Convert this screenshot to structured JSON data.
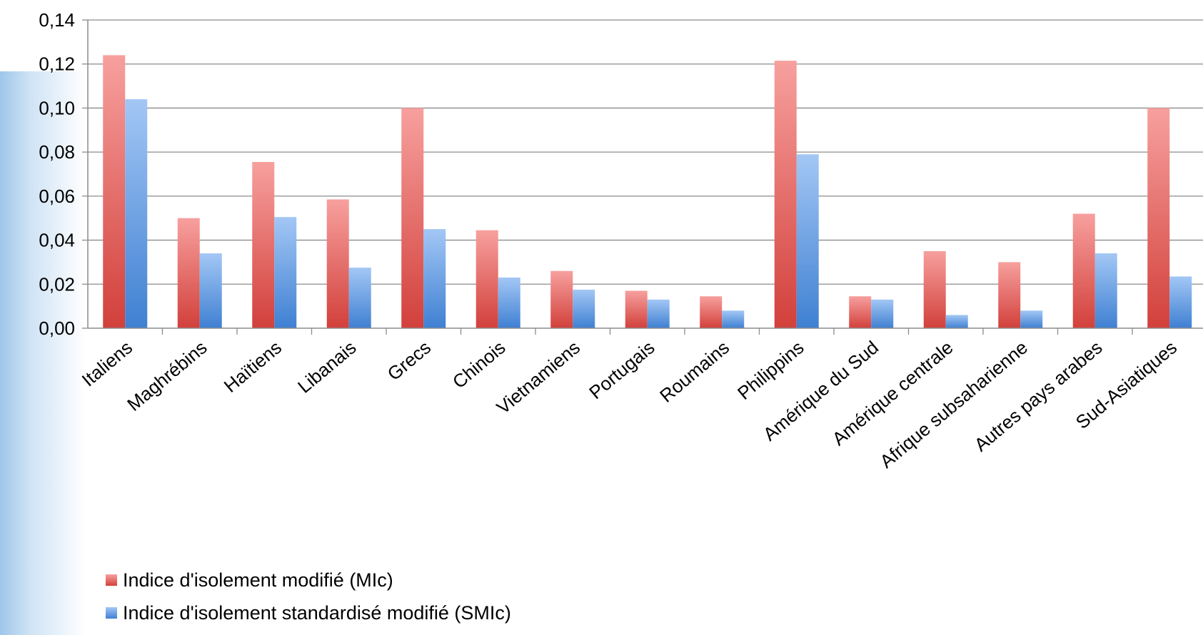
{
  "chart_data": {
    "type": "bar",
    "categories": [
      "Italiens",
      "Maghrébins",
      "Haïtiens",
      "Libanais",
      "Grecs",
      "Chinois",
      "Vietnamiens",
      "Portugais",
      "Roumains",
      "Philippins",
      "Amérique du Sud",
      "Amérique centrale",
      "Afrique subsaharienne",
      "Autres pays arabes",
      "Sud-Asiatiques"
    ],
    "series": [
      {
        "name": "Indice d'isolement modifié (MIc)",
        "color_top": "#f7a09e",
        "color_bottom": "#d2403b",
        "values": [
          0.124,
          0.05,
          0.0755,
          0.0585,
          0.1,
          0.0445,
          0.026,
          0.017,
          0.0145,
          0.1215,
          0.0145,
          0.035,
          0.03,
          0.052,
          0.1
        ]
      },
      {
        "name": "Indice d'isolement standardisé modifié (SMIc)",
        "color_top": "#a3c7f5",
        "color_bottom": "#3f80d2",
        "values": [
          0.104,
          0.034,
          0.0505,
          0.0275,
          0.045,
          0.023,
          0.0175,
          0.013,
          0.008,
          0.079,
          0.013,
          0.006,
          0.008,
          0.034,
          0.0235
        ]
      }
    ],
    "yticks": [
      "0,00",
      "0,02",
      "0,04",
      "0,06",
      "0,08",
      "0,10",
      "0,12",
      "0,14"
    ],
    "ylim": [
      0,
      0.14
    ],
    "title": "",
    "xlabel": "",
    "ylabel": "",
    "grid": true,
    "legend_position": "bottom-left"
  }
}
